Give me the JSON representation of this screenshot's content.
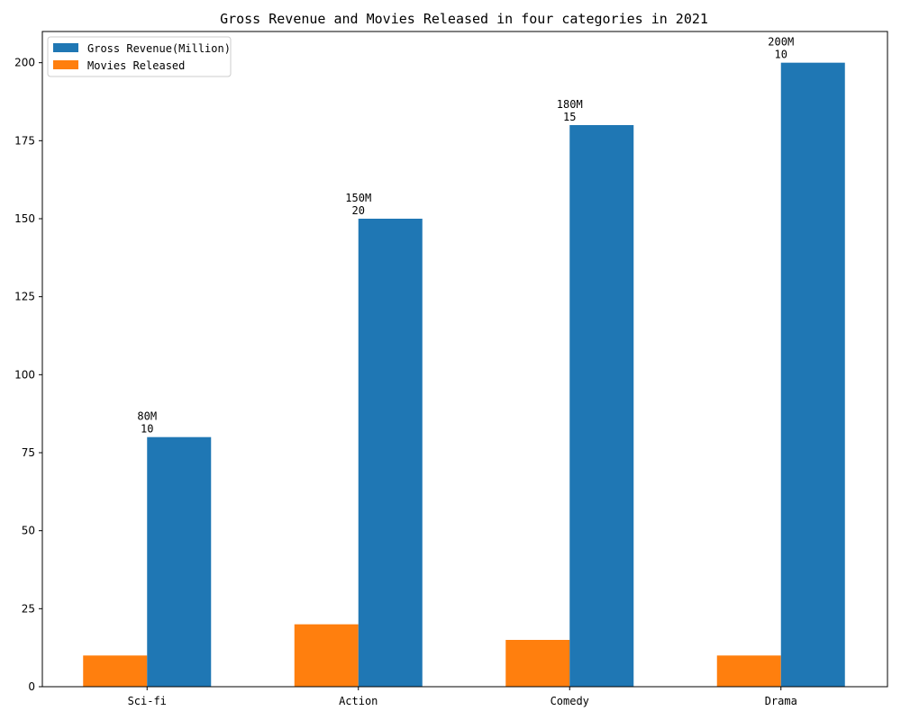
{
  "chart_data": {
    "type": "bar",
    "title": "Gross Revenue and Movies Released in four categories in 2021",
    "xlabel": "",
    "ylabel": "",
    "categories": [
      "Sci-fi",
      "Action",
      "Comedy",
      "Drama"
    ],
    "series": [
      {
        "name": "Movies Released",
        "values": [
          10,
          20,
          15,
          10
        ],
        "color": "#ff7f0e"
      },
      {
        "name": "Gross Revenue(Million)",
        "values": [
          80,
          150,
          180,
          200
        ],
        "color": "#1f77b4"
      }
    ],
    "ylim": [
      0,
      210
    ],
    "yticks": [
      0,
      25,
      50,
      75,
      100,
      125,
      150,
      175,
      200
    ],
    "annotations": [
      {
        "revenue_label": "80M",
        "count_label": "10"
      },
      {
        "revenue_label": "150M",
        "count_label": "20"
      },
      {
        "revenue_label": "180M",
        "count_label": "15"
      },
      {
        "revenue_label": "200M",
        "count_label": "10"
      }
    ],
    "legend": {
      "placement": "top-left",
      "entries": [
        {
          "label": "Gross Revenue(Million)",
          "color": "#1f77b4"
        },
        {
          "label": "Movies Released",
          "color": "#ff7f0e"
        }
      ]
    },
    "grid": false
  }
}
